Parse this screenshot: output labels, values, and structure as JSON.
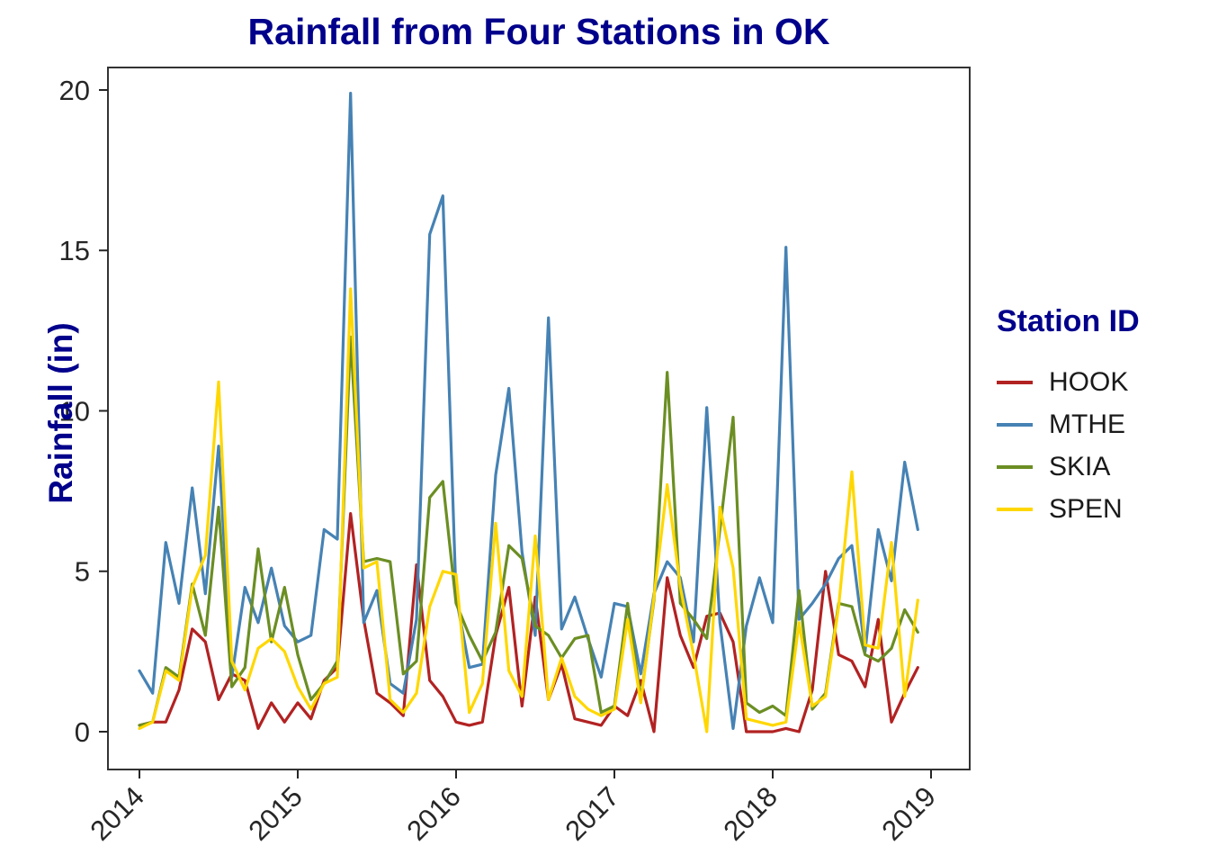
{
  "title": "Rainfall from Four Stations in OK",
  "y_axis_label": "Rainfall (in)",
  "legend": {
    "title": "Station ID"
  },
  "colors": {
    "title_text": "#00008B",
    "axis_text": "#262626",
    "panel_border": "#333333"
  },
  "chart_data": {
    "type": "line",
    "title": "Rainfall from Four Stations in OK",
    "xlabel": "",
    "ylabel": "Rainfall (in)",
    "x_unit": "month",
    "x_start": "2014-01",
    "x_end": "2018-12",
    "x_tick_labels": [
      "2014",
      "2015",
      "2016",
      "2017",
      "2018",
      "2019"
    ],
    "x_tick_rotation": 45,
    "y_ticks": [
      0,
      5,
      10,
      15,
      20
    ],
    "ylim": [
      0,
      20
    ],
    "grid": false,
    "panel_border": true,
    "background": "#FFFFFF",
    "legend_title": "Station ID",
    "legend_position": "right",
    "series": [
      {
        "name": "HOOK",
        "color": "#B22222",
        "values": [
          0.2,
          0.3,
          0.3,
          1.3,
          3.2,
          2.8,
          1.0,
          1.8,
          1.6,
          0.1,
          0.9,
          0.3,
          0.9,
          0.4,
          1.6,
          2.0,
          6.8,
          3.5,
          1.2,
          0.9,
          0.5,
          5.2,
          1.6,
          1.1,
          0.3,
          0.2,
          0.3,
          3.0,
          4.5,
          0.8,
          4.2,
          1.0,
          2.1,
          0.4,
          0.3,
          0.2,
          0.8,
          0.5,
          1.6,
          0.0,
          4.8,
          3.0,
          2.0,
          3.6,
          3.7,
          2.8,
          0.0,
          0.0,
          0.0,
          0.1,
          0.0,
          1.3,
          5.0,
          2.4,
          2.2,
          1.4,
          3.5,
          0.3,
          1.2,
          2.0
        ]
      },
      {
        "name": "MTHE",
        "color": "#4682B4",
        "values": [
          1.9,
          1.2,
          5.9,
          4.0,
          7.6,
          4.3,
          8.9,
          1.7,
          4.5,
          3.4,
          5.1,
          3.3,
          2.8,
          3.0,
          6.3,
          6.0,
          19.9,
          3.4,
          4.4,
          1.5,
          1.2,
          3.5,
          15.5,
          16.7,
          4.2,
          2.0,
          2.1,
          8.0,
          10.7,
          5.6,
          3.0,
          12.9,
          3.2,
          4.2,
          2.9,
          1.7,
          4.0,
          3.9,
          1.8,
          4.3,
          5.3,
          4.8,
          2.8,
          10.1,
          3.4,
          0.1,
          3.3,
          4.8,
          3.4,
          15.1,
          3.5,
          4.0,
          4.6,
          5.4,
          5.8,
          2.5,
          6.3,
          4.7,
          8.4,
          6.3
        ]
      },
      {
        "name": "SKIA",
        "color": "#6B8E23",
        "values": [
          0.2,
          0.3,
          2.0,
          1.7,
          4.6,
          3.0,
          7.0,
          1.4,
          2.0,
          5.7,
          2.8,
          4.5,
          2.4,
          1.0,
          1.5,
          2.2,
          12.3,
          5.3,
          5.4,
          5.3,
          1.8,
          2.2,
          7.3,
          7.8,
          4.0,
          3.0,
          2.2,
          3.1,
          5.8,
          5.4,
          3.3,
          3.0,
          2.3,
          2.9,
          3.0,
          0.6,
          0.8,
          4.0,
          1.0,
          4.1,
          11.2,
          4.0,
          3.5,
          2.9,
          6.3,
          9.8,
          0.9,
          0.6,
          0.8,
          0.5,
          4.4,
          0.7,
          1.2,
          4.0,
          3.9,
          2.4,
          2.2,
          2.6,
          3.8,
          3.1
        ]
      },
      {
        "name": "SPEN",
        "color": "#FFD700",
        "values": [
          0.1,
          0.3,
          1.9,
          1.6,
          4.5,
          5.5,
          10.9,
          2.2,
          1.3,
          2.6,
          2.9,
          2.5,
          1.4,
          0.7,
          1.5,
          1.7,
          13.8,
          5.1,
          5.3,
          1.0,
          0.6,
          1.2,
          3.9,
          5.0,
          4.9,
          0.6,
          1.5,
          6.5,
          1.9,
          1.1,
          6.1,
          1.0,
          2.3,
          1.1,
          0.7,
          0.5,
          0.7,
          3.5,
          0.9,
          4.2,
          7.7,
          4.5,
          2.4,
          0.0,
          7.0,
          5.1,
          0.4,
          0.3,
          0.2,
          0.3,
          3.4,
          0.8,
          1.1,
          3.9,
          8.1,
          2.7,
          2.6,
          5.9,
          1.1,
          4.1
        ]
      }
    ]
  }
}
